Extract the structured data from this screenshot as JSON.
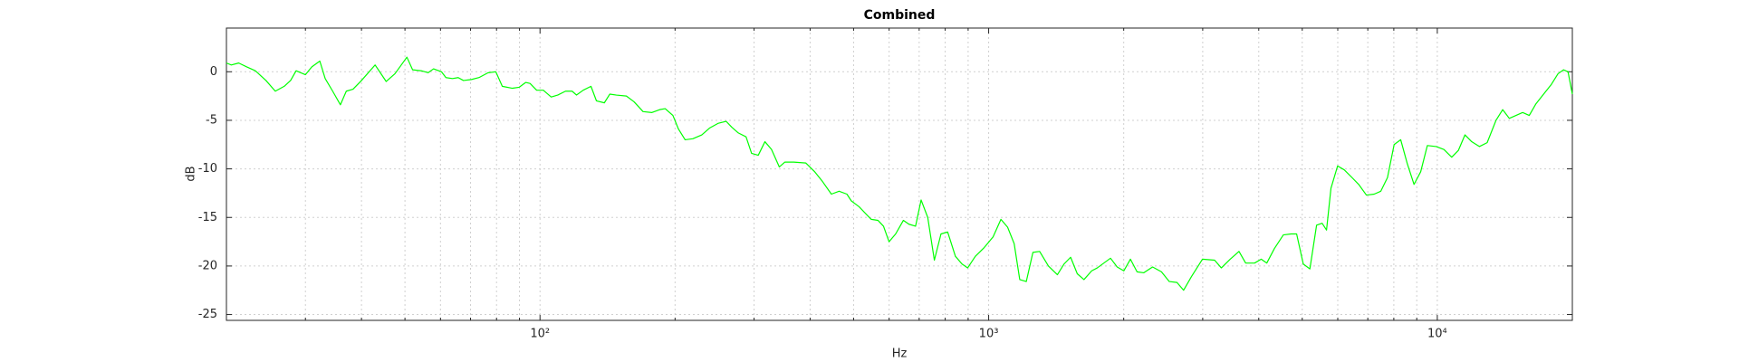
{
  "chart_data": {
    "type": "line",
    "title": "Combined",
    "x_label": "Hz",
    "y_label": "dB",
    "x_scale": "log",
    "grid": true,
    "color": "#00ff00",
    "xlim": [
      20,
      20000
    ],
    "ylim": [
      -25.6,
      4.5
    ],
    "xticks": [
      {
        "value": 100,
        "label": "10²"
      },
      {
        "value": 1000,
        "label": "10³"
      },
      {
        "value": 10000,
        "label": "10⁴"
      }
    ],
    "xminorticks": [
      30,
      40,
      50,
      60,
      70,
      80,
      90,
      200,
      300,
      400,
      500,
      600,
      700,
      800,
      900,
      2000,
      3000,
      4000,
      5000,
      6000,
      7000,
      8000,
      9000
    ],
    "yticks": [
      -25,
      -20,
      -15,
      -10,
      -5,
      0
    ],
    "x": [
      20.0,
      20.5,
      21.3,
      22.2,
      23.2,
      24.5,
      25.7,
      26.9,
      27.8,
      28.6,
      30.0,
      31.0,
      32.3,
      33.2,
      34.5,
      35.9,
      37.0,
      38.3,
      40.0,
      42.9,
      45.4,
      47.5,
      50.5,
      52.0,
      54.4,
      56.3,
      57.9,
      60.3,
      61.7,
      63.8,
      65.7,
      67.5,
      70.3,
      73.1,
      76.6,
      79.7,
      82.4,
      86.8,
      89.8,
      92.9,
      95.0,
      98.3,
      101.7,
      105.9,
      109.5,
      114.0,
      117.9,
      120.6,
      124.8,
      129.9,
      133.6,
      139.1,
      143.1,
      148.0,
      155.8,
      162.1,
      169.7,
      177.6,
      184.8,
      190.1,
      197.8,
      203.5,
      210.6,
      219.1,
      229.4,
      238.7,
      249.8,
      259.9,
      267.4,
      276.7,
      287.9,
      296.2,
      306.5,
      317.2,
      328.1,
      341.5,
      351.4,
      367.7,
      391.4,
      409.6,
      426.2,
      446.1,
      464.2,
      483.1,
      494.2,
      514.3,
      529.1,
      547.5,
      566.5,
      582.9,
      599.7,
      620.4,
      645.6,
      664.2,
      687.2,
      707.0,
      731.5,
      756.8,
      783.0,
      810.2,
      843.1,
      872.4,
      897.6,
      934.1,
      977.5,
      1023,
      1065,
      1102,
      1140,
      1173,
      1213,
      1255,
      1299,
      1359,
      1423,
      1472,
      1523,
      1576,
      1631,
      1697,
      1746,
      1806,
      1869,
      1934,
      2001,
      2070,
      2142,
      2217,
      2320,
      2428,
      2527,
      2629,
      2720,
      2831,
      2996,
      3189,
      3301,
      3454,
      3614,
      3740,
      3914,
      4051,
      4168,
      4335,
      4538,
      4722,
      4858,
      5027,
      5200,
      5382,
      5537,
      5664,
      5794,
      5995,
      6204,
      6456,
      6680,
      6950,
      7233,
      7483,
      7744,
      8013,
      8288,
      8577,
      8875,
      9183,
      9502,
      9943,
      10347,
      10768,
      11142,
      11527,
      11929,
      12412,
      12916,
      13517,
      13987,
      14471,
      14975,
      15497,
      16033,
      16592,
      17258,
      17960,
      18584,
      19120,
      19560,
      20000
    ],
    "values": [
      0.9,
      0.7,
      0.9,
      0.5,
      0.1,
      -0.9,
      -2.0,
      -1.5,
      -0.9,
      0.1,
      -0.3,
      0.5,
      1.1,
      -0.7,
      -2.0,
      -3.4,
      -2.0,
      -1.8,
      -0.9,
      0.7,
      -1.0,
      -0.2,
      1.5,
      0.2,
      0.1,
      -0.1,
      0.3,
      0,
      -0.6,
      -0.7,
      -0.6,
      -0.9,
      -0.8,
      -0.6,
      -0.1,
      0,
      -1.5,
      -1.7,
      -1.6,
      -1.1,
      -1.2,
      -1.9,
      -1.9,
      -2.6,
      -2.4,
      -2.0,
      -2.0,
      -2.4,
      -1.9,
      -1.5,
      -3.0,
      -3.2,
      -2.3,
      -2.4,
      -2.5,
      -3.1,
      -4.1,
      -4.2,
      -3.9,
      -3.8,
      -4.5,
      -5.9,
      -7.0,
      -6.9,
      -6.5,
      -5.8,
      -5.3,
      -5.1,
      -5.7,
      -6.3,
      -6.7,
      -8.4,
      -8.6,
      -7.2,
      -8.0,
      -9.8,
      -9.3,
      -9.3,
      -9.4,
      -10.3,
      -11.3,
      -12.6,
      -12.3,
      -12.6,
      -13.3,
      -13.9,
      -14.5,
      -15.2,
      -15.3,
      -15.9,
      -17.5,
      -16.7,
      -15.3,
      -15.7,
      -15.9,
      -13.2,
      -15.0,
      -19.4,
      -16.7,
      -16.5,
      -19.0,
      -19.8,
      -20.2,
      -19.0,
      -18.1,
      -17.0,
      -15.2,
      -16.0,
      -17.7,
      -21.4,
      -21.6,
      -18.6,
      -18.5,
      -20.0,
      -20.9,
      -19.8,
      -19.1,
      -20.8,
      -21.4,
      -20.5,
      -20.2,
      -19.7,
      -19.2,
      -20.1,
      -20.5,
      -19.3,
      -20.6,
      -20.7,
      -20.1,
      -20.6,
      -21.6,
      -21.7,
      -22.5,
      -21.1,
      -19.3,
      -19.4,
      -20.2,
      -19.3,
      -18.5,
      -19.7,
      -19.7,
      -19.3,
      -19.7,
      -18.2,
      -16.8,
      -16.7,
      -16.7,
      -19.8,
      -20.3,
      -15.8,
      -15.6,
      -16.3,
      -12.0,
      -9.7,
      -10.1,
      -10.9,
      -11.6,
      -12.7,
      -12.6,
      -12.3,
      -10.9,
      -7.5,
      -7.0,
      -9.5,
      -11.6,
      -10.3,
      -7.6,
      -7.7,
      -8.0,
      -8.8,
      -8.1,
      -6.5,
      -7.2,
      -7.7,
      -7.3,
      -5.0,
      -3.9,
      -4.8,
      -4.5,
      -4.2,
      -4.5,
      -3.3,
      -2.3,
      -1.3,
      -0.2,
      0.2,
      0,
      -2.3
    ]
  }
}
